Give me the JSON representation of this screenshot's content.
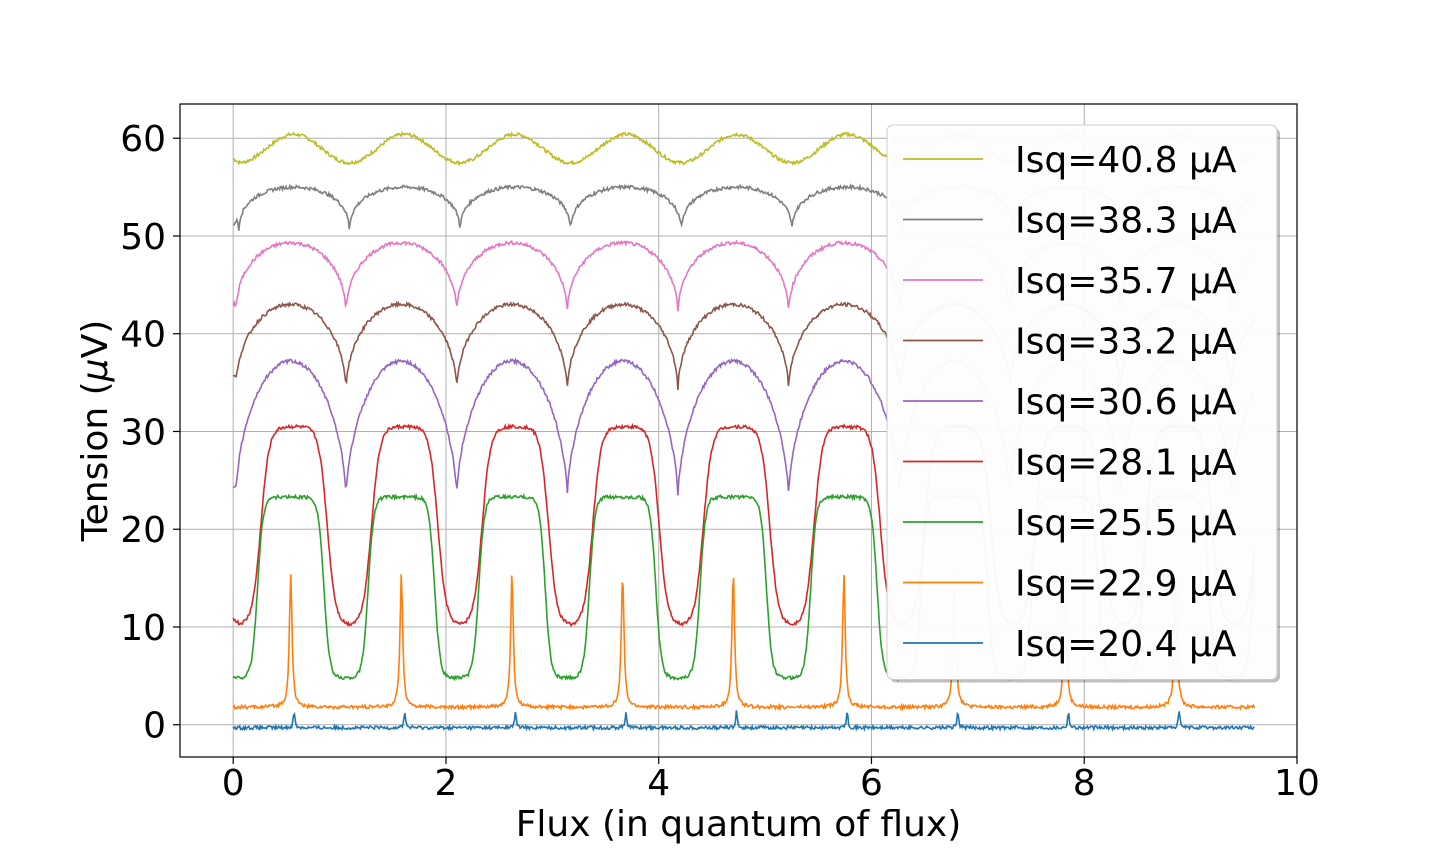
{
  "chart_data": {
    "type": "line",
    "title": "",
    "xlabel": "Flux (in quantum of flux)",
    "ylabel_text": "Tension (",
    "ylabel_mu": "μ",
    "ylabel_unit": "V)",
    "xlim": [
      -0.5,
      10.0
    ],
    "ylim": [
      -3.3,
      63.5
    ],
    "xticks": [
      0,
      2,
      4,
      6,
      8,
      10
    ],
    "xtick_labels": [
      "0",
      "2",
      "4",
      "6",
      "8",
      "10"
    ],
    "yticks": [
      0,
      10,
      20,
      30,
      40,
      50,
      60
    ],
    "ytick_labels": [
      "0",
      "10",
      "20",
      "30",
      "40",
      "50",
      "60"
    ],
    "grid": true,
    "legend_position": "upper-right",
    "x_range": [
      0,
      9.6
    ],
    "period": 1.04,
    "series": [
      {
        "name": "Isq=40.8 μA",
        "color": "#bcbd22",
        "shape": "sine",
        "base": 57.5,
        "top": 60.4,
        "peak_phase": 0.55,
        "sharp": 1.0,
        "start": 57.9,
        "end_x": 9.6
      },
      {
        "name": "Isq=38.3 μA",
        "color": "#7f7f7f",
        "shape": "arch",
        "base": 50.0,
        "top": 55.0,
        "peak_phase": 0.55,
        "sharp": 0.35,
        "start": 51.0,
        "end_x": 9.6
      },
      {
        "name": "Isq=35.7 μA",
        "color": "#e377c2",
        "shape": "arch",
        "base": 41.8,
        "top": 49.3,
        "peak_phase": 0.52,
        "sharp": 0.45,
        "start": 43.0,
        "end_x": 9.6
      },
      {
        "name": "Isq=33.2 μA",
        "color": "#8c564b",
        "shape": "arch",
        "base": 34.0,
        "top": 43.0,
        "peak_phase": 0.52,
        "sharp": 0.5,
        "start": 35.8,
        "end_x": 9.6
      },
      {
        "name": "Isq=30.6 μA",
        "color": "#9467bd",
        "shape": "arch",
        "base": 23.2,
        "top": 37.2,
        "peak_phase": 0.52,
        "sharp": 0.6,
        "start": 24.2,
        "end_x": 9.6
      },
      {
        "name": "Isq=28.1 μA",
        "color": "#d62728",
        "shape": "plateau",
        "base": 10.3,
        "top": 30.5,
        "peak_phase": 0.55,
        "sharp": 0.3,
        "start": 10.8,
        "end_x": 9.6
      },
      {
        "name": "Isq=25.5 μA",
        "color": "#2ca02c",
        "shape": "plateau",
        "base": 4.8,
        "top": 23.3,
        "peak_phase": 0.52,
        "sharp": 0.2,
        "start": 4.8,
        "end_x": 9.6
      },
      {
        "name": "Isq=22.9 μA",
        "color": "#ff7f0e",
        "shape": "peak",
        "base": 1.8,
        "top": 15.5,
        "peak_phase": 0.52,
        "sharp": 0.07,
        "start": 1.8,
        "end_x": 9.6
      },
      {
        "name": "Isq=20.4 μA",
        "color": "#1f77b4",
        "shape": "peak",
        "base": -0.3,
        "top": 1.4,
        "peak_phase": 0.55,
        "sharp": 0.04,
        "start": -0.3,
        "end_x": 9.6
      }
    ]
  }
}
